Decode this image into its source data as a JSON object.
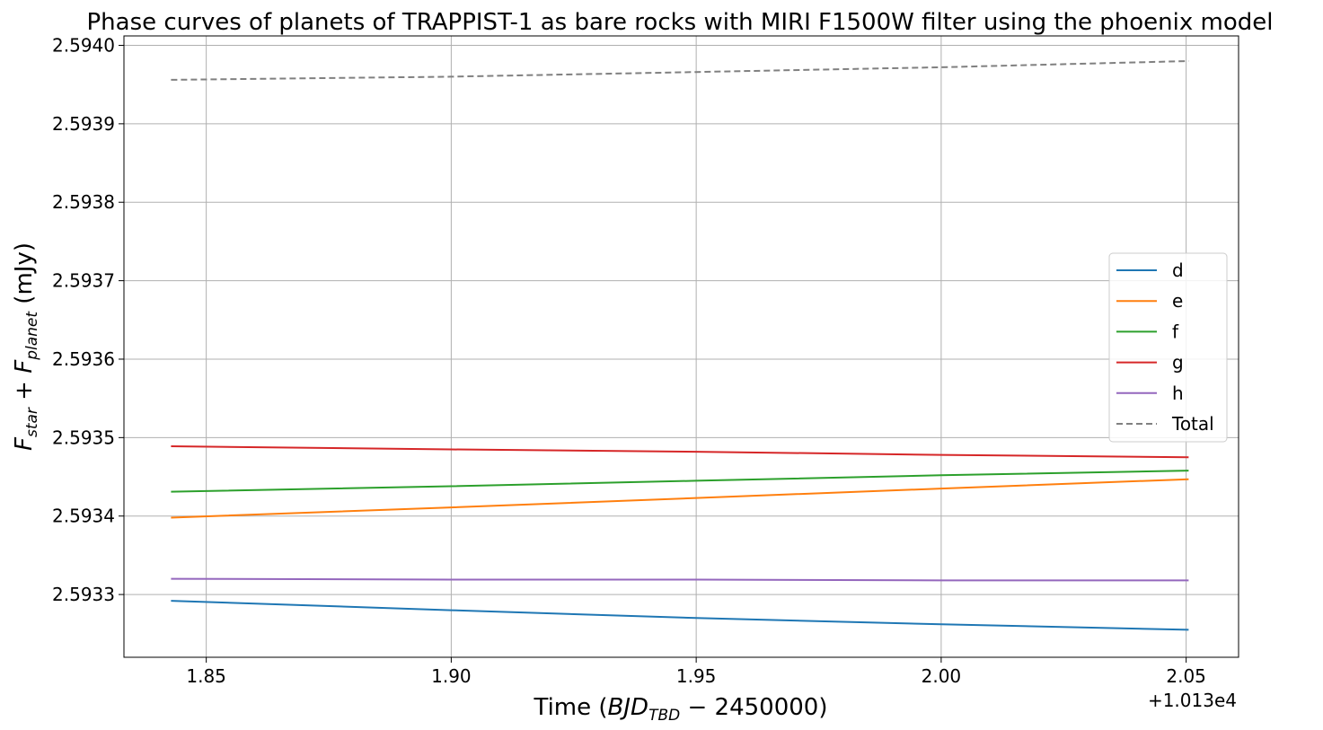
{
  "chart_data": {
    "type": "line",
    "title": "Phase curves of planets of TRAPPIST-1 as bare rocks with MIRI F1500W filter using the phoenix model",
    "xlabel": {
      "pre": "Time (",
      "main": "BJD",
      "sub": "TBD",
      "post": " − 2450000)"
    },
    "ylabel": {
      "f1": "F",
      "s1": "star",
      "plus": " + ",
      "f2": "F",
      "s2": "planet",
      "post": " (mJy)"
    },
    "x_offset_label": "+1.013e4",
    "x_ticks": [
      "1.85",
      "1.90",
      "1.95",
      "2.00",
      "2.05"
    ],
    "x_tick_values": [
      1.85,
      1.9,
      1.95,
      2.0,
      2.05
    ],
    "y_ticks": [
      "2.5933",
      "2.5934",
      "2.5935",
      "2.5936",
      "2.5937",
      "2.5938",
      "2.5939",
      "2.5940"
    ],
    "y_tick_values": [
      2.5933,
      2.5934,
      2.5935,
      2.5936,
      2.5937,
      2.5938,
      2.5939,
      2.594
    ],
    "xlim": [
      1.8332,
      2.0607
    ],
    "ylim": [
      2.59322,
      2.594012
    ],
    "grid": true,
    "legend_position": "center-right",
    "series": [
      {
        "name": "d",
        "color": "#1f77b4",
        "dash": false,
        "x": [
          1.8428,
          1.9,
          1.95,
          2.0,
          2.0505
        ],
        "y": [
          2.593292,
          2.59328,
          2.59327,
          2.593262,
          2.593255
        ]
      },
      {
        "name": "e",
        "color": "#ff7f0e",
        "dash": false,
        "x": [
          1.8428,
          1.9,
          1.95,
          2.0,
          2.0505
        ],
        "y": [
          2.593398,
          2.593411,
          2.593423,
          2.593435,
          2.593447
        ]
      },
      {
        "name": "f",
        "color": "#2ca02c",
        "dash": false,
        "x": [
          1.8428,
          1.9,
          1.95,
          2.0,
          2.0505
        ],
        "y": [
          2.593431,
          2.593438,
          2.593445,
          2.593452,
          2.593458
        ]
      },
      {
        "name": "g",
        "color": "#d62728",
        "dash": false,
        "x": [
          1.8428,
          1.9,
          1.95,
          2.0,
          2.0505
        ],
        "y": [
          2.593489,
          2.593485,
          2.593482,
          2.593478,
          2.593475
        ]
      },
      {
        "name": "h",
        "color": "#9467bd",
        "dash": false,
        "x": [
          1.8428,
          1.9,
          1.95,
          2.0,
          2.0505
        ],
        "y": [
          2.59332,
          2.593319,
          2.593319,
          2.593318,
          2.593318
        ]
      },
      {
        "name": "Total",
        "color": "#808080",
        "dash": true,
        "x": [
          1.8428,
          1.9,
          1.95,
          2.0,
          2.0505
        ],
        "y": [
          2.593956,
          2.59396,
          2.593966,
          2.593972,
          2.59398
        ]
      }
    ]
  }
}
